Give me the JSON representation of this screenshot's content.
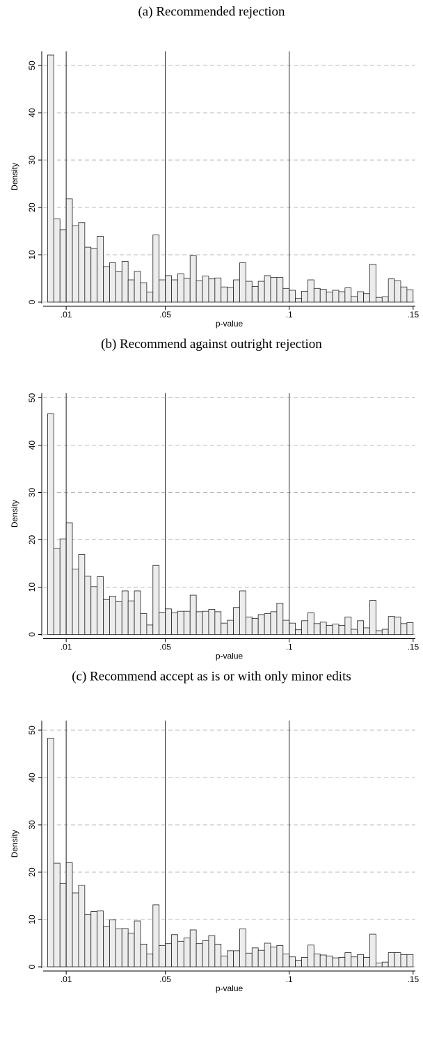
{
  "chart_data": [
    {
      "type": "histogram",
      "title": "(a) Recommended rejection",
      "x_label": "p-value",
      "y_label": "Density",
      "color": "#ececec",
      "bins": [
        0.0025,
        0.005,
        0.0075,
        0.01,
        0.0125,
        0.015,
        0.0175,
        0.02,
        0.0225,
        0.025,
        0.0275,
        0.03,
        0.0325,
        0.035,
        0.0375,
        0.04,
        0.0425,
        0.045,
        0.0475,
        0.05,
        0.0525,
        0.055,
        0.0575,
        0.06,
        0.0625,
        0.065,
        0.0675,
        0.07,
        0.0725,
        0.075,
        0.0775,
        0.08,
        0.0825,
        0.085,
        0.0875,
        0.09,
        0.0925,
        0.095,
        0.0975,
        0.1,
        0.1025,
        0.105,
        0.1075,
        0.11,
        0.1125,
        0.115,
        0.1175,
        0.12,
        0.1225,
        0.125,
        0.1275,
        0.13,
        0.1325,
        0.135,
        0.1375,
        0.14,
        0.1425,
        0.145,
        0.1475,
        0.15
      ],
      "values": [
        52.2,
        17.6,
        15.3,
        21.8,
        16.1,
        16.8,
        11.6,
        11.4,
        13.9,
        7.5,
        8.3,
        6.4,
        8.6,
        4.7,
        6.5,
        4.1,
        2.1,
        14.2,
        4.7,
        5.6,
        4.7,
        6.0,
        5.0,
        9.8,
        4.5,
        5.5,
        4.9,
        5.1,
        3.2,
        3.1,
        4.7,
        8.3,
        4.4,
        3.3,
        4.4,
        5.6,
        5.2,
        5.2,
        2.9,
        2.5,
        0.8,
        2.3,
        4.7,
        2.9,
        2.7,
        2.1,
        2.5,
        2.2,
        3.0,
        1.2,
        2.2,
        1.8,
        8.0,
        1.0,
        1.1,
        4.9,
        4.5,
        3.2,
        2.6
      ],
      "xlim": [
        0.0007,
        0.1509
      ],
      "ylim": [
        0,
        53
      ],
      "xticks": [
        {
          "value": 0.01,
          "label": ".01"
        },
        {
          "value": 0.05,
          "label": ".05"
        },
        {
          "value": 0.1,
          "label": ".1"
        },
        {
          "value": 0.15,
          "label": ".15"
        }
      ],
      "yticks": [
        0,
        10,
        20,
        30,
        40,
        50
      ],
      "grid": true,
      "reference_lines": [
        0.01,
        0.05,
        0.1
      ]
    },
    {
      "type": "histogram",
      "title": "(b) Recommend against outright rejection",
      "x_label": "p-value",
      "y_label": "Density",
      "color": "#ececec",
      "bins": [
        0.0025,
        0.005,
        0.0075,
        0.01,
        0.0125,
        0.015,
        0.0175,
        0.02,
        0.0225,
        0.025,
        0.0275,
        0.03,
        0.0325,
        0.035,
        0.0375,
        0.04,
        0.0425,
        0.045,
        0.0475,
        0.05,
        0.0525,
        0.055,
        0.0575,
        0.06,
        0.0625,
        0.065,
        0.0675,
        0.07,
        0.0725,
        0.075,
        0.0775,
        0.08,
        0.0825,
        0.085,
        0.0875,
        0.09,
        0.0925,
        0.095,
        0.0975,
        0.1,
        0.1025,
        0.105,
        0.1075,
        0.11,
        0.1125,
        0.115,
        0.1175,
        0.12,
        0.1225,
        0.125,
        0.1275,
        0.13,
        0.1325,
        0.135,
        0.1375,
        0.14,
        0.1425,
        0.145,
        0.1475,
        0.15
      ],
      "values": [
        46.6,
        18.2,
        20.2,
        23.6,
        13.8,
        16.9,
        12.3,
        10.1,
        12.2,
        7.4,
        8.1,
        6.9,
        9.2,
        7.1,
        9.2,
        4.4,
        2.0,
        14.6,
        4.7,
        5.4,
        4.6,
        4.9,
        4.9,
        8.3,
        4.8,
        4.9,
        5.3,
        4.8,
        2.4,
        3.0,
        5.7,
        9.2,
        3.7,
        3.4,
        4.2,
        4.4,
        4.8,
        6.6,
        3.0,
        2.4,
        1.0,
        2.9,
        4.6,
        2.3,
        2.6,
        1.9,
        2.2,
        1.9,
        3.7,
        1.1,
        2.9,
        1.4,
        7.2,
        0.8,
        1.1,
        3.8,
        3.7,
        2.3,
        2.5
      ],
      "xlim": [
        0.0007,
        0.1509
      ],
      "ylim": [
        0,
        51
      ],
      "xticks": [
        {
          "value": 0.01,
          "label": ".01"
        },
        {
          "value": 0.05,
          "label": ".05"
        },
        {
          "value": 0.1,
          "label": ".1"
        },
        {
          "value": 0.15,
          "label": ".15"
        }
      ],
      "yticks": [
        0,
        10,
        20,
        30,
        40,
        50
      ],
      "grid": true,
      "reference_lines": [
        0.01,
        0.05,
        0.1
      ]
    },
    {
      "type": "histogram",
      "title": "(c) Recommend accept as is or with only minor edits",
      "x_label": "p-value",
      "y_label": "Density",
      "color": "#ececec",
      "bins": [
        0.0025,
        0.005,
        0.0075,
        0.01,
        0.0125,
        0.015,
        0.0175,
        0.02,
        0.0225,
        0.025,
        0.0275,
        0.03,
        0.0325,
        0.035,
        0.0375,
        0.04,
        0.0425,
        0.045,
        0.0475,
        0.05,
        0.0525,
        0.055,
        0.0575,
        0.06,
        0.0625,
        0.065,
        0.0675,
        0.07,
        0.0725,
        0.075,
        0.0775,
        0.08,
        0.0825,
        0.085,
        0.0875,
        0.09,
        0.0925,
        0.095,
        0.0975,
        0.1,
        0.1025,
        0.105,
        0.1075,
        0.11,
        0.1125,
        0.115,
        0.1175,
        0.12,
        0.1225,
        0.125,
        0.1275,
        0.13,
        0.1325,
        0.135,
        0.1375,
        0.14,
        0.1425,
        0.145,
        0.1475,
        0.15
      ],
      "values": [
        48.3,
        21.9,
        17.6,
        22.0,
        15.6,
        17.2,
        11.1,
        11.7,
        11.8,
        8.5,
        9.9,
        8.0,
        8.1,
        7.1,
        9.7,
        4.8,
        2.7,
        13.1,
        4.5,
        4.9,
        6.8,
        5.4,
        6.1,
        7.8,
        4.9,
        5.5,
        6.6,
        4.8,
        2.3,
        3.4,
        3.4,
        8.0,
        2.9,
        4.0,
        3.5,
        5.0,
        4.2,
        4.5,
        2.7,
        2.1,
        1.4,
        2.0,
        4.6,
        2.7,
        2.5,
        2.3,
        1.9,
        2.0,
        3.0,
        2.1,
        2.6,
        2.0,
        6.9,
        0.8,
        1.0,
        3.0,
        3.0,
        2.6,
        2.6
      ],
      "xlim": [
        0.0007,
        0.1509
      ],
      "ylim": [
        0,
        52
      ],
      "xticks": [
        {
          "value": 0.01,
          "label": ".01"
        },
        {
          "value": 0.05,
          "label": ".05"
        },
        {
          "value": 0.1,
          "label": ".1"
        },
        {
          "value": 0.15,
          "label": ".15"
        }
      ],
      "yticks": [
        0,
        10,
        20,
        30,
        40,
        50
      ],
      "grid": true,
      "reference_lines": [
        0.01,
        0.05,
        0.1
      ]
    }
  ]
}
